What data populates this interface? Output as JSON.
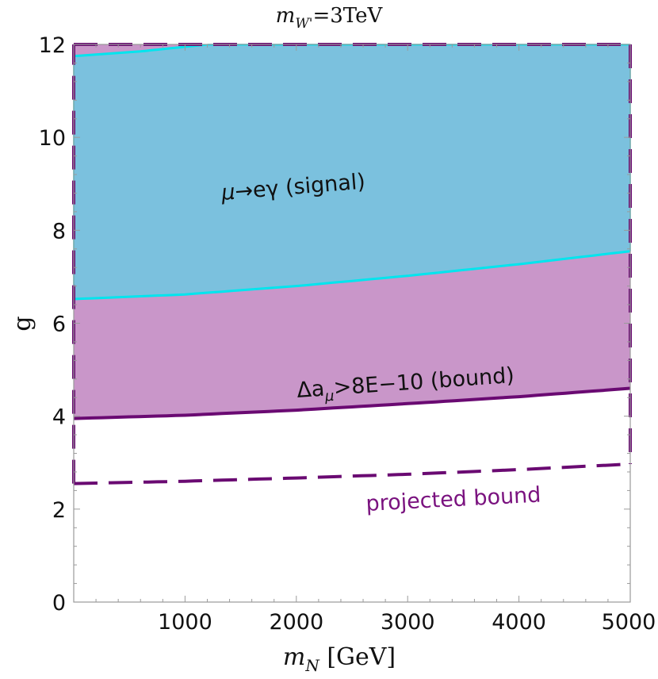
{
  "chart_data": {
    "type": "area",
    "title": "m",
    "title_sub": "W'",
    "title_rest": "=3TeV",
    "xlabel": "m",
    "xlabel_sub": "N",
    "xlabel_rest": " [GeV]",
    "ylabel": "g",
    "xlim": [
      0,
      5000
    ],
    "ylim": [
      0,
      12
    ],
    "x_ticks": [
      1000,
      2000,
      3000,
      4000,
      5000
    ],
    "y_ticks": [
      0,
      2,
      4,
      6,
      8,
      10,
      12
    ],
    "grid": false,
    "colors": {
      "signal_fill": "#7bc1de",
      "bound_fill": "#c996c9",
      "signal_line": "#00e5ee",
      "bound_line": "#6a0a72",
      "projected_line": "#6a0a72",
      "annotation_projected": "#7a127f",
      "annotation_dark": "#111111"
    },
    "series": [
      {
        "key": "signal_lower",
        "x": [
          0,
          1000,
          2000,
          3000,
          4000,
          5000
        ],
        "y": [
          6.52,
          6.62,
          6.8,
          7.02,
          7.27,
          7.55
        ]
      },
      {
        "key": "signal_upper",
        "x": [
          0,
          600,
          1200,
          5000
        ],
        "y": [
          11.75,
          11.85,
          12.0,
          12.0
        ]
      },
      {
        "key": "bound",
        "x": [
          0,
          1000,
          2000,
          3000,
          4000,
          5000
        ],
        "y": [
          3.95,
          4.02,
          4.13,
          4.27,
          4.42,
          4.6
        ]
      },
      {
        "key": "projected_bound",
        "x": [
          0,
          1000,
          2000,
          3000,
          4000,
          5000
        ],
        "y": [
          2.55,
          2.6,
          2.67,
          2.75,
          2.85,
          2.97
        ]
      }
    ],
    "annotations": {
      "signal": {
        "mu": "μ",
        "rest": "→eγ (signal)"
      },
      "bound": {
        "delta": "Δa",
        "sub": "μ",
        "rest": ">8E−10 (bound)"
      },
      "projected": "projected bound"
    }
  }
}
